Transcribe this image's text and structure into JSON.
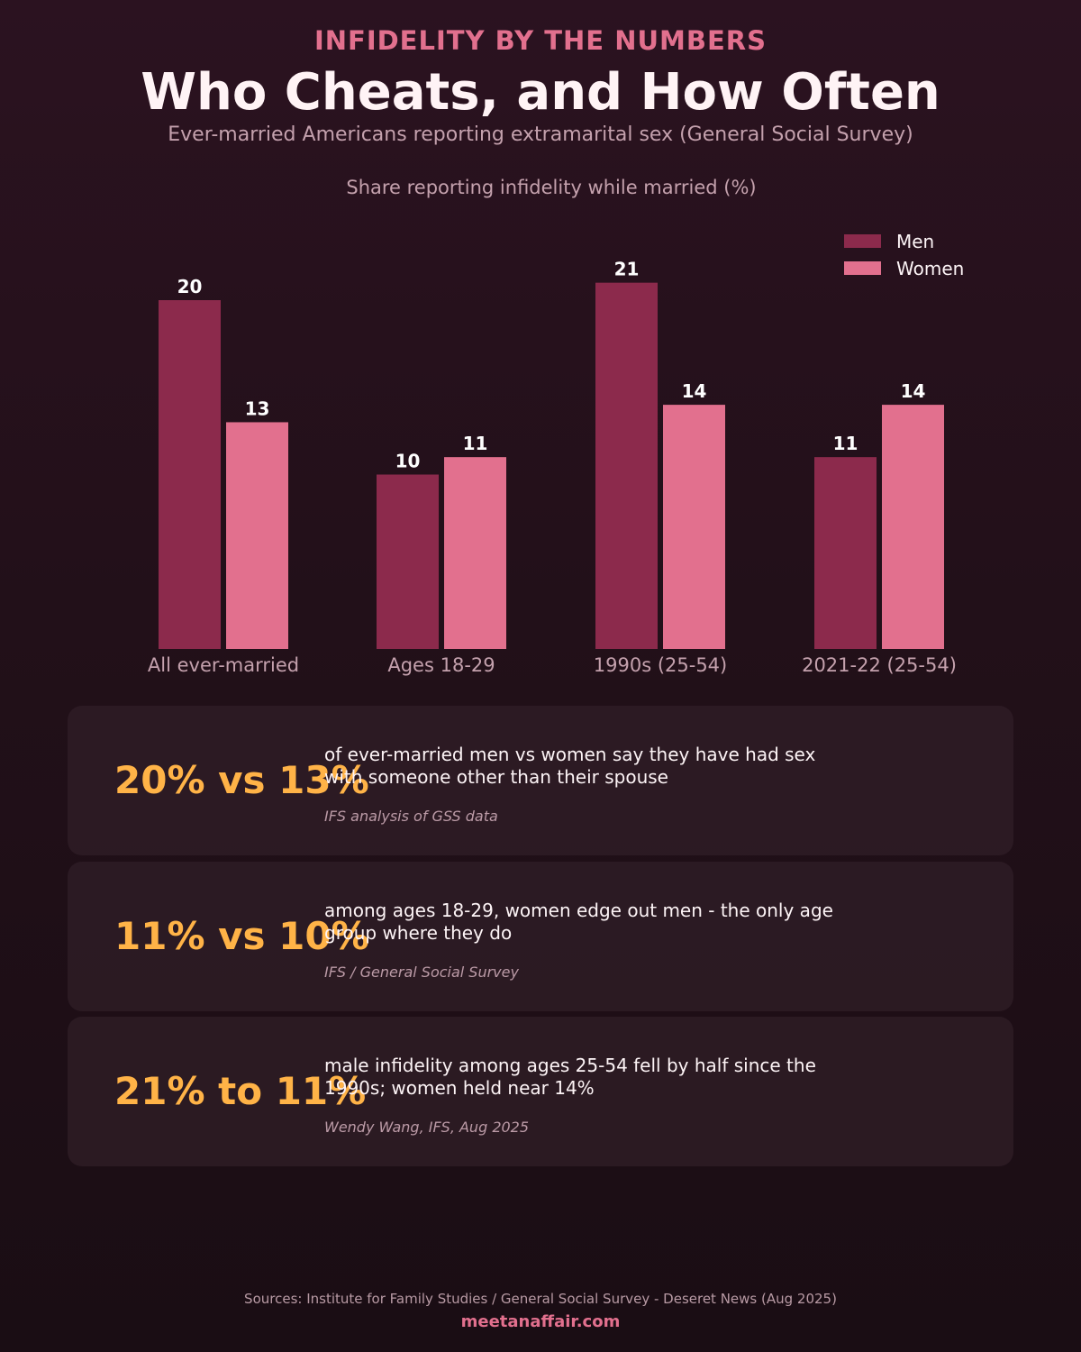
{
  "header": {
    "kicker": "INFIDELITY BY THE NUMBERS",
    "title": "Who Cheats, and How Often",
    "subtitle": "Ever-married Americans reporting extramarital sex (General Social Survey)"
  },
  "chart_data": {
    "type": "bar",
    "title": "Share reporting infidelity while married (%)",
    "categories": [
      "All ever-married",
      "Ages 18-29",
      "1990s (25-54)",
      "2021-22 (25-54)"
    ],
    "series": [
      {
        "name": "Men",
        "values": [
          20,
          10,
          21,
          11
        ],
        "color": "#8c2a4c"
      },
      {
        "name": "Women",
        "values": [
          13,
          11,
          14,
          14
        ],
        "color": "#e2708e"
      }
    ],
    "ylim": [
      0,
      21
    ],
    "xlabel": "",
    "ylabel": "",
    "legend": "top-right",
    "grid": false,
    "data_labels": true
  },
  "cards": [
    {
      "big": "20% vs 13%",
      "desc": "of ever-married men vs women say they have had sex with someone other than their spouse",
      "source": "IFS analysis of GSS data"
    },
    {
      "big": "11% vs 10%",
      "desc": "among ages 18-29, women edge out men - the only age group where they do",
      "source": "IFS / General Social Survey"
    },
    {
      "big": "21% to 11%",
      "desc": "male infidelity among ages 25-54 fell by half since the 1990s; women held near 14%",
      "source": "Wendy Wang, IFS, Aug 2025"
    }
  ],
  "footer": {
    "sources": "Sources: Institute for Family Studies / General Social Survey  -  Deseret News (Aug 2025)",
    "brand": "meetanaffair.com"
  },
  "colors": {
    "accent": "#e2708e",
    "highlight": "#ffb347",
    "men": "#8c2a4c",
    "women": "#e2708e"
  }
}
